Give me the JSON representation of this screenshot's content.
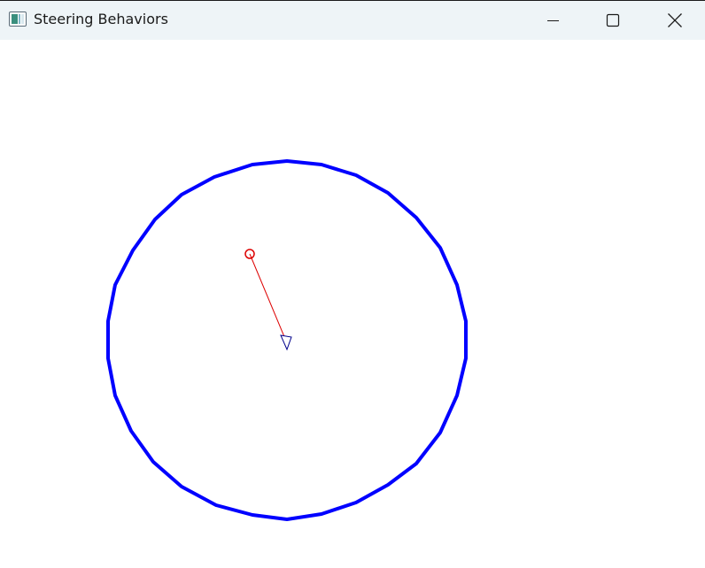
{
  "window": {
    "title": "Steering Behaviors",
    "icon": "app-window-icon",
    "controls": {
      "minimize_icon": "minimize-icon",
      "maximize_icon": "maximize-icon",
      "close_icon": "close-icon"
    }
  },
  "scene": {
    "wander_circle_color": "#0000ff",
    "target_color": "#dd0000",
    "steering_line_color": "#dd0000",
    "agent_color": "#00008b"
  }
}
